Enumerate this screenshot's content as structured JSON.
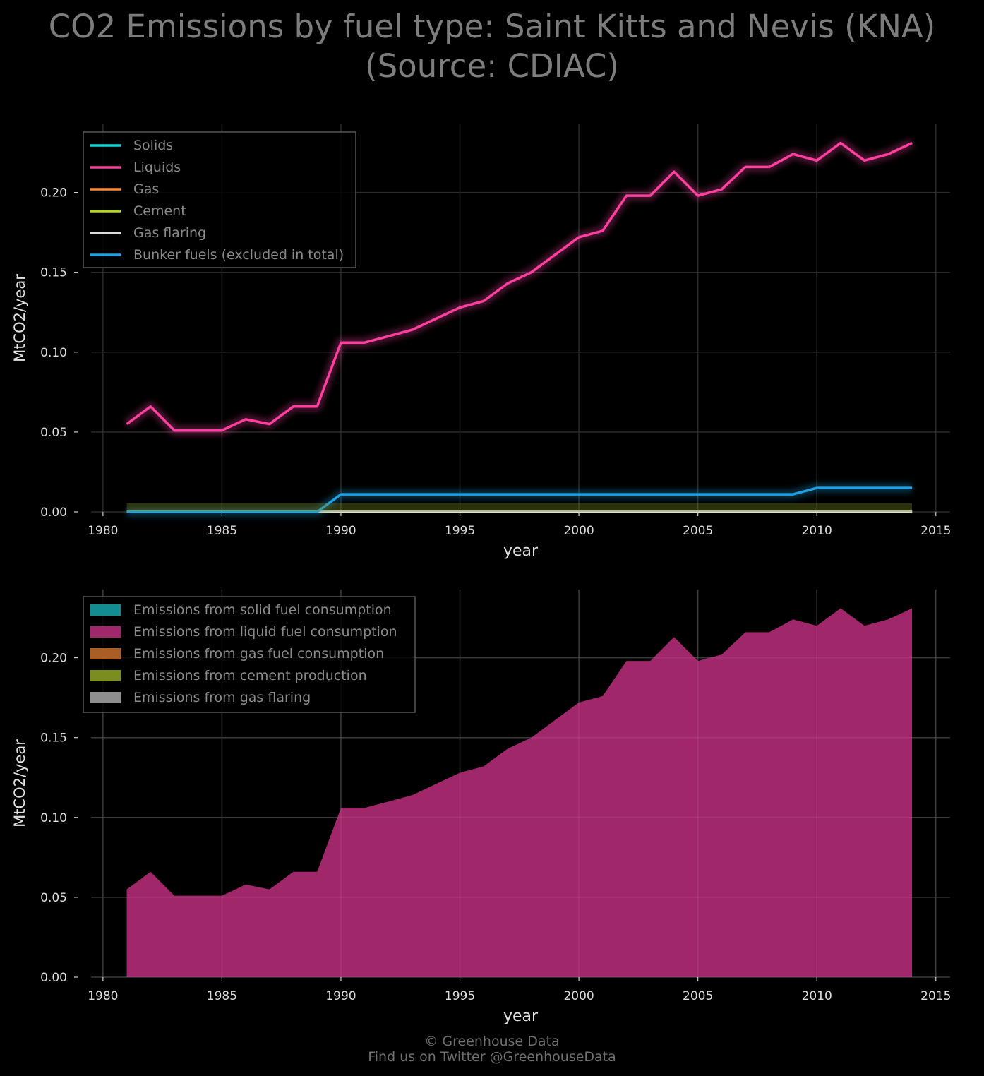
{
  "title": {
    "line1": "CO2 Emissions by fuel type: Saint Kitts and Nevis (KNA)",
    "line2": "(Source: CDIAC)"
  },
  "credits": {
    "line1": "© Greenhouse Data",
    "line2": "Find us on Twitter @GreenhouseData"
  },
  "chart_data": [
    {
      "type": "line",
      "title": "",
      "xlabel": "year",
      "ylabel": "MtCO2/year",
      "xlim": [
        1979.5,
        2015.6
      ],
      "ylim": [
        0,
        0.2427
      ],
      "x_ticks": [
        1980,
        1985,
        1990,
        1995,
        2000,
        2005,
        2010,
        2015
      ],
      "y_ticks": [
        0.0,
        0.05,
        0.1,
        0.15,
        0.2
      ],
      "grid": true,
      "legend_position": "top-left",
      "x": [
        1981,
        1982,
        1983,
        1984,
        1985,
        1986,
        1987,
        1988,
        1989,
        1990,
        1991,
        1992,
        1993,
        1994,
        1995,
        1996,
        1997,
        1998,
        1999,
        2000,
        2001,
        2002,
        2003,
        2004,
        2005,
        2006,
        2007,
        2008,
        2009,
        2010,
        2011,
        2012,
        2013,
        2014
      ],
      "series": [
        {
          "name": "Solids",
          "color": "#17d4d4",
          "values": [
            0,
            0,
            0,
            0,
            0,
            0,
            0,
            0,
            0,
            0,
            0,
            0,
            0,
            0,
            0,
            0,
            0,
            0,
            0,
            0,
            0,
            0,
            0,
            0,
            0,
            0,
            0,
            0,
            0,
            0,
            0,
            0,
            0,
            0
          ]
        },
        {
          "name": "Liquids",
          "color": "#ff3fa0",
          "values": [
            0.055,
            0.066,
            0.051,
            0.051,
            0.051,
            0.058,
            0.055,
            0.066,
            0.066,
            0.106,
            0.106,
            0.11,
            0.114,
            0.121,
            0.128,
            0.132,
            0.143,
            0.15,
            0.161,
            0.172,
            0.176,
            0.198,
            0.198,
            0.213,
            0.198,
            0.202,
            0.216,
            0.216,
            0.224,
            0.22,
            0.231,
            0.22,
            0.224,
            0.231
          ]
        },
        {
          "name": "Gas",
          "color": "#ff8c3a",
          "values": [
            0,
            0,
            0,
            0,
            0,
            0,
            0,
            0,
            0,
            0,
            0,
            0,
            0,
            0,
            0,
            0,
            0,
            0,
            0,
            0,
            0,
            0,
            0,
            0,
            0,
            0,
            0,
            0,
            0,
            0,
            0,
            0,
            0,
            0
          ]
        },
        {
          "name": "Cement",
          "color": "#b5d430",
          "values": [
            0,
            0,
            0,
            0,
            0,
            0,
            0,
            0,
            0,
            0,
            0,
            0,
            0,
            0,
            0,
            0,
            0,
            0,
            0,
            0,
            0,
            0,
            0,
            0,
            0,
            0,
            0,
            0,
            0,
            0,
            0,
            0,
            0,
            0
          ]
        },
        {
          "name": "Gas flaring",
          "color": "#dcdcdc",
          "values": [
            0,
            0,
            0,
            0,
            0,
            0,
            0,
            0,
            0,
            0,
            0,
            0,
            0,
            0,
            0,
            0,
            0,
            0,
            0,
            0,
            0,
            0,
            0,
            0,
            0,
            0,
            0,
            0,
            0,
            0,
            0,
            0,
            0,
            0
          ]
        },
        {
          "name": "Bunker fuels (excluded in total)",
          "color": "#1ea2e6",
          "values": [
            0,
            0,
            0,
            0,
            0,
            0,
            0,
            0,
            0,
            0.011,
            0.011,
            0.011,
            0.011,
            0.011,
            0.011,
            0.011,
            0.011,
            0.011,
            0.011,
            0.011,
            0.011,
            0.011,
            0.011,
            0.011,
            0.011,
            0.011,
            0.011,
            0.011,
            0.011,
            0.015,
            0.015,
            0.015,
            0.015,
            0.015
          ]
        }
      ]
    },
    {
      "type": "area",
      "title": "",
      "xlabel": "year",
      "ylabel": "MtCO2/year",
      "xlim": [
        1979.5,
        2015.6
      ],
      "ylim": [
        0,
        0.2427
      ],
      "x_ticks": [
        1980,
        1985,
        1990,
        1995,
        2000,
        2005,
        2010,
        2015
      ],
      "y_ticks": [
        0.0,
        0.05,
        0.1,
        0.15,
        0.2
      ],
      "grid": true,
      "stacked": true,
      "legend_position": "top-left",
      "x": [
        1981,
        1982,
        1983,
        1984,
        1985,
        1986,
        1987,
        1988,
        1989,
        1990,
        1991,
        1992,
        1993,
        1994,
        1995,
        1996,
        1997,
        1998,
        1999,
        2000,
        2001,
        2002,
        2003,
        2004,
        2005,
        2006,
        2007,
        2008,
        2009,
        2010,
        2011,
        2012,
        2013,
        2014
      ],
      "series": [
        {
          "name": "Emissions from solid fuel consumption",
          "color": "#138d90",
          "values": [
            0,
            0,
            0,
            0,
            0,
            0,
            0,
            0,
            0,
            0,
            0,
            0,
            0,
            0,
            0,
            0,
            0,
            0,
            0,
            0,
            0,
            0,
            0,
            0,
            0,
            0,
            0,
            0,
            0,
            0,
            0,
            0,
            0,
            0
          ]
        },
        {
          "name": "Emissions from liquid fuel consumption",
          "color": "#a0276a",
          "values": [
            0.055,
            0.066,
            0.051,
            0.051,
            0.051,
            0.058,
            0.055,
            0.066,
            0.066,
            0.106,
            0.106,
            0.11,
            0.114,
            0.121,
            0.128,
            0.132,
            0.143,
            0.15,
            0.161,
            0.172,
            0.176,
            0.198,
            0.198,
            0.213,
            0.198,
            0.202,
            0.216,
            0.216,
            0.224,
            0.22,
            0.231,
            0.22,
            0.224,
            0.231
          ]
        },
        {
          "name": "Emissions from gas fuel consumption",
          "color": "#a85e25",
          "values": [
            0,
            0,
            0,
            0,
            0,
            0,
            0,
            0,
            0,
            0,
            0,
            0,
            0,
            0,
            0,
            0,
            0,
            0,
            0,
            0,
            0,
            0,
            0,
            0,
            0,
            0,
            0,
            0,
            0,
            0,
            0,
            0,
            0,
            0
          ]
        },
        {
          "name": "Emissions from cement production",
          "color": "#7b8d1e",
          "values": [
            0,
            0,
            0,
            0,
            0,
            0,
            0,
            0,
            0,
            0,
            0,
            0,
            0,
            0,
            0,
            0,
            0,
            0,
            0,
            0,
            0,
            0,
            0,
            0,
            0,
            0,
            0,
            0,
            0,
            0,
            0,
            0,
            0,
            0
          ]
        },
        {
          "name": "Emissions from gas flaring",
          "color": "#8e8e8e",
          "values": [
            0,
            0,
            0,
            0,
            0,
            0,
            0,
            0,
            0,
            0,
            0,
            0,
            0,
            0,
            0,
            0,
            0,
            0,
            0,
            0,
            0,
            0,
            0,
            0,
            0,
            0,
            0,
            0,
            0,
            0,
            0,
            0,
            0,
            0
          ]
        }
      ]
    }
  ]
}
